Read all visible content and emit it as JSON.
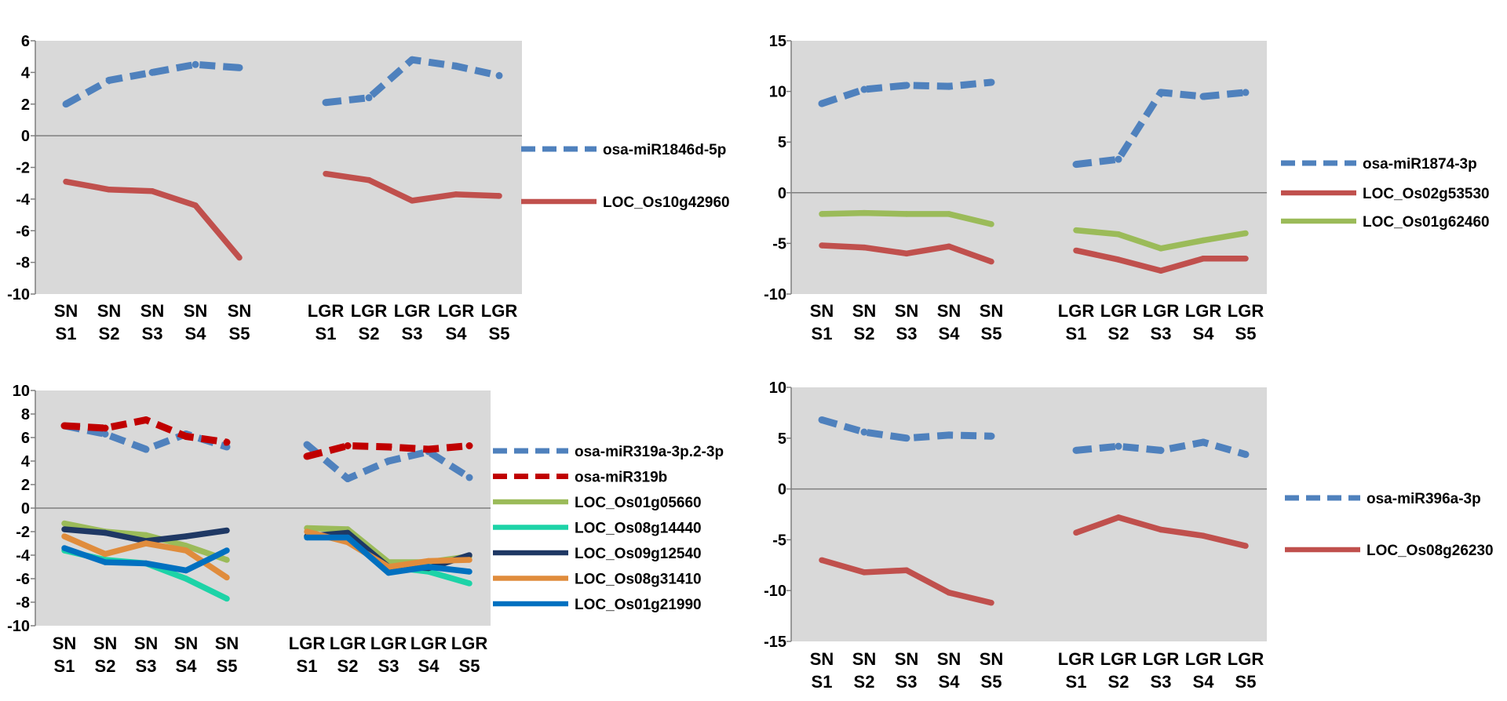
{
  "chart_data": [
    {
      "type": "line",
      "panel": "top-left",
      "categories": [
        "SN S1",
        "SN S2",
        "SN S3",
        "SN S4",
        "SN S5",
        "LGR S1",
        "LGR S2",
        "LGR S3",
        "LGR S4",
        "LGR S5"
      ],
      "category_groups": [
        {
          "top": [
            "SN",
            "SN",
            "SN",
            "SN",
            "SN"
          ],
          "bottom": [
            "S1",
            "S2",
            "S3",
            "S4",
            "S5"
          ]
        },
        {
          "top": [
            "LGR",
            "LGR",
            "LGR",
            "LGR",
            "LGR"
          ],
          "bottom": [
            "S1",
            "S2",
            "S3",
            "S4",
            "S5"
          ]
        }
      ],
      "ylim": [
        -10,
        6
      ],
      "yticks": [
        "6",
        "4",
        "2",
        "0",
        "-2",
        "-4",
        "-6",
        "-8",
        "-10"
      ],
      "legend_position": "right",
      "series": [
        {
          "name": "osa-miR1846d-5p",
          "color": "#4f81bd",
          "style": "dashed",
          "sn": [
            2.0,
            3.5,
            4.0,
            4.5,
            4.3
          ],
          "lgr": [
            2.1,
            2.4,
            4.8,
            4.4,
            3.8
          ]
        },
        {
          "name": "LOC_Os10g42960",
          "color": "#c0504d",
          "style": "solid",
          "sn": [
            -2.9,
            -3.4,
            -3.5,
            -4.4,
            -7.7
          ],
          "lgr": [
            -2.4,
            -2.8,
            -4.1,
            -3.7,
            -3.8
          ]
        }
      ]
    },
    {
      "type": "line",
      "panel": "top-right",
      "categories": [
        "SN S1",
        "SN S2",
        "SN S3",
        "SN S4",
        "SN S5",
        "LGR S1",
        "LGR S2",
        "LGR S3",
        "LGR S4",
        "LGR S5"
      ],
      "category_groups": [
        {
          "top": [
            "SN",
            "SN",
            "SN",
            "SN",
            "SN"
          ],
          "bottom": [
            "S1",
            "S2",
            "S3",
            "S4",
            "S5"
          ]
        },
        {
          "top": [
            "LGR",
            "LGR",
            "LGR",
            "LGR",
            "LGR"
          ],
          "bottom": [
            "S1",
            "S2",
            "S3",
            "S4",
            "S5"
          ]
        }
      ],
      "ylim": [
        -10,
        15
      ],
      "yticks": [
        "15",
        "10",
        "5",
        "0",
        "-5",
        "-10"
      ],
      "legend_position": "right",
      "series": [
        {
          "name": "osa-miR1874-3p",
          "color": "#4f81bd",
          "style": "dashed",
          "sn": [
            8.8,
            10.2,
            10.6,
            10.5,
            10.9
          ],
          "lgr": [
            2.8,
            3.3,
            9.9,
            9.5,
            9.9
          ]
        },
        {
          "name": "LOC_Os02g53530",
          "color": "#c0504d",
          "style": "solid",
          "sn": [
            -5.2,
            -5.4,
            -6.0,
            -5.3,
            -6.8
          ],
          "lgr": [
            -5.7,
            -6.6,
            -7.7,
            -6.5,
            -6.5
          ]
        },
        {
          "name": "LOC_Os01g62460",
          "color": "#9bbb59",
          "style": "solid",
          "sn": [
            -2.1,
            -2.0,
            -2.1,
            -2.1,
            -3.1
          ],
          "lgr": [
            -3.7,
            -4.1,
            -5.5,
            -4.7,
            -4.0
          ]
        }
      ]
    },
    {
      "type": "line",
      "panel": "bottom-left",
      "categories": [
        "SN S1",
        "SN S2",
        "SN S3",
        "SN S4",
        "SN S5",
        "LGR S1",
        "LGR S2",
        "LGR S3",
        "LGR S4",
        "LGR S5"
      ],
      "category_groups": [
        {
          "top": [
            "SN",
            "SN",
            "SN",
            "SN",
            "SN"
          ],
          "bottom": [
            "S1",
            "S2",
            "S3",
            "S4",
            "S5"
          ]
        },
        {
          "top": [
            "LGR",
            "LGR",
            "LGR",
            "LGR",
            "LGR"
          ],
          "bottom": [
            "S1",
            "S2",
            "S3",
            "S4",
            "S5"
          ]
        }
      ],
      "ylim": [
        -10,
        10
      ],
      "yticks": [
        "10",
        "8",
        "6",
        "4",
        "2",
        "0",
        "-2",
        "-4",
        "-6",
        "-8",
        "-10"
      ],
      "legend_position": "right",
      "series": [
        {
          "name": "osa-miR319a-3p.2-3p",
          "color": "#4f81bd",
          "style": "dashed",
          "sn": [
            7.0,
            6.3,
            5.0,
            6.3,
            5.2
          ],
          "lgr": [
            5.4,
            2.5,
            4.0,
            4.8,
            2.6
          ]
        },
        {
          "name": "osa-miR319b",
          "color": "#c00000",
          "style": "dashed",
          "sn": [
            7.0,
            6.8,
            7.5,
            6.1,
            5.6
          ],
          "lgr": [
            4.4,
            5.3,
            5.2,
            5.0,
            5.3
          ]
        },
        {
          "name": "LOC_Os01g05660",
          "color": "#9bbb59",
          "style": "solid",
          "sn": [
            -1.3,
            -2.0,
            -2.3,
            -3.2,
            -4.4
          ],
          "lgr": [
            -1.7,
            -1.8,
            -4.6,
            -4.6,
            -4.1
          ]
        },
        {
          "name": "LOC_Os08g14440",
          "color": "#1dd3a7",
          "style": "solid",
          "sn": [
            -3.6,
            -4.4,
            -4.7,
            -6.0,
            -7.7
          ],
          "lgr": [
            -2.4,
            -2.3,
            -5.0,
            -5.4,
            -6.4
          ]
        },
        {
          "name": "LOC_Os09g12540",
          "color": "#1f3864",
          "style": "solid",
          "sn": [
            -1.8,
            -2.1,
            -2.8,
            -2.4,
            -1.9
          ],
          "lgr": [
            -2.4,
            -2.1,
            -5.0,
            -5.1,
            -4.0
          ]
        },
        {
          "name": "LOC_Os08g31410",
          "color": "#e08c3c",
          "style": "solid",
          "sn": [
            -2.4,
            -3.9,
            -3.0,
            -3.6,
            -5.9
          ],
          "lgr": [
            -2.0,
            -2.9,
            -5.0,
            -4.5,
            -4.4
          ]
        },
        {
          "name": "LOC_Os01g21990",
          "color": "#0070c0",
          "style": "solid",
          "sn": [
            -3.4,
            -4.6,
            -4.7,
            -5.3,
            -3.6
          ],
          "lgr": [
            -2.5,
            -2.5,
            -5.5,
            -5.0,
            -5.4
          ]
        }
      ]
    },
    {
      "type": "line",
      "panel": "bottom-right",
      "categories": [
        "SN S1",
        "SN S2",
        "SN S3",
        "SN S4",
        "SN S5",
        "LGR S1",
        "LGR S2",
        "LGR S3",
        "LGR S4",
        "LGR S5"
      ],
      "category_groups": [
        {
          "top": [
            "SN",
            "SN",
            "SN",
            "SN",
            "SN"
          ],
          "bottom": [
            "S1",
            "S2",
            "S3",
            "S4",
            "S5"
          ]
        },
        {
          "top": [
            "LGR",
            "LGR",
            "LGR",
            "LGR",
            "LGR"
          ],
          "bottom": [
            "S1",
            "S2",
            "S3",
            "S4",
            "S5"
          ]
        }
      ],
      "ylim": [
        -15,
        10
      ],
      "yticks": [
        "10",
        "5",
        "0",
        "-5",
        "-10",
        "-15"
      ],
      "legend_position": "right",
      "series": [
        {
          "name": "osa-miR396a-3p",
          "color": "#4f81bd",
          "style": "dashed",
          "sn": [
            6.8,
            5.6,
            5.0,
            5.3,
            5.2
          ],
          "lgr": [
            3.8,
            4.2,
            3.8,
            4.6,
            3.4
          ]
        },
        {
          "name": "LOC_Os08g26230",
          "color": "#c0504d",
          "style": "solid",
          "sn": [
            -7.0,
            -8.2,
            -8.0,
            -10.2,
            -11.2
          ],
          "lgr": [
            -4.3,
            -2.8,
            -4.0,
            -4.6,
            -5.6
          ]
        }
      ]
    }
  ]
}
